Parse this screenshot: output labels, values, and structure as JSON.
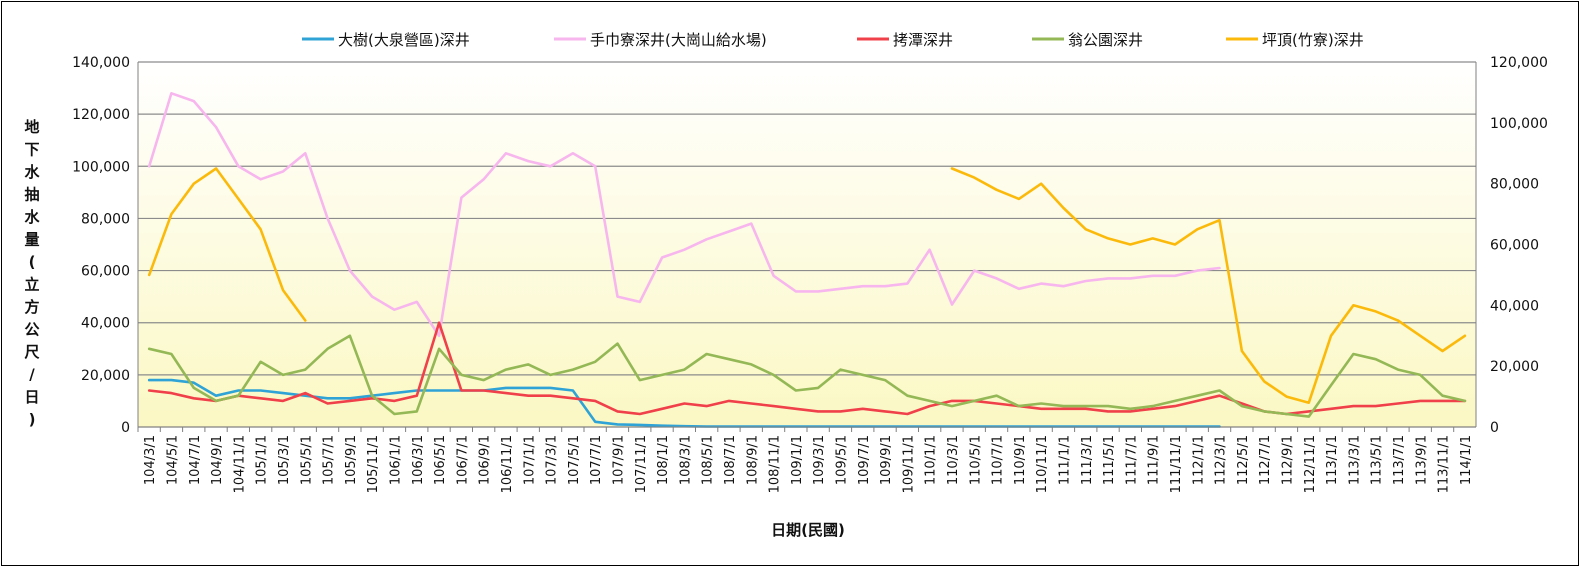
{
  "chart_data": {
    "type": "line",
    "title": "",
    "xlabel": "日期(民國)",
    "ylabel": "地下水抽水量(立方公尺/日)",
    "y_left": {
      "min": 0,
      "max": 140000,
      "step": 20000,
      "ticks": [
        "0",
        "20,000",
        "40,000",
        "60,000",
        "80,000",
        "100,000",
        "120,000",
        "140,000"
      ]
    },
    "y_right": {
      "min": 0,
      "max": 120000,
      "step": 20000,
      "ticks": [
        "0",
        "20,000",
        "40,000",
        "60,000",
        "80,000",
        "100,000",
        "120,000"
      ]
    },
    "x_ticks": [
      "104/3/1",
      "104/5/1",
      "104/7/1",
      "104/9/1",
      "104/11/1",
      "105/1/1",
      "105/3/1",
      "105/5/1",
      "105/7/1",
      "105/9/1",
      "105/11/1",
      "106/1/1",
      "106/3/1",
      "106/5/1",
      "106/7/1",
      "106/9/1",
      "106/11/1",
      "107/1/1",
      "107/3/1",
      "107/5/1",
      "107/7/1",
      "107/9/1",
      "107/11/1",
      "108/1/1",
      "108/3/1",
      "108/5/1",
      "108/7/1",
      "108/9/1",
      "108/11/1",
      "109/1/1",
      "109/3/1",
      "109/5/1",
      "109/7/1",
      "109/9/1",
      "109/11/1",
      "110/1/1",
      "110/3/1",
      "110/5/1",
      "110/7/1",
      "110/9/1",
      "110/11/1",
      "111/1/1",
      "111/3/1",
      "111/5/1",
      "111/7/1",
      "111/9/1",
      "111/11/1",
      "112/1/1",
      "112/3/1",
      "112/5/1",
      "112/7/1",
      "112/9/1",
      "112/11/1",
      "113/1/1",
      "113/3/1",
      "113/5/1",
      "113/7/1",
      "113/9/1",
      "113/11/1",
      "114/1/1"
    ],
    "grid": true,
    "legend_position": "top",
    "background": "gradient-light-yellow",
    "series": [
      {
        "name": "大樹(大泉營區)深井",
        "color": "#2fa3d6",
        "axis": "left",
        "values": [
          18000,
          18000,
          17000,
          12000,
          14000,
          14000,
          13000,
          12000,
          11000,
          11000,
          12000,
          13000,
          14000,
          14000,
          14000,
          14000,
          15000,
          15000,
          15000,
          14000,
          2000,
          1000,
          800,
          500,
          300,
          200,
          200,
          200,
          200,
          200,
          200,
          200,
          200,
          200,
          200,
          200,
          200,
          200,
          200,
          200,
          200,
          200,
          200,
          200,
          200,
          200,
          200,
          200,
          200,
          null,
          null,
          null,
          null,
          null,
          null,
          null,
          null,
          null,
          null,
          null
        ]
      },
      {
        "name": "手巾寮深井(大崗山給水場)",
        "color": "#f7b6ee",
        "axis": "left",
        "values": [
          100000,
          128000,
          125000,
          115000,
          100000,
          95000,
          98000,
          105000,
          80000,
          60000,
          50000,
          45000,
          48000,
          35000,
          88000,
          95000,
          105000,
          102000,
          100000,
          105000,
          100000,
          50000,
          48000,
          65000,
          68000,
          72000,
          75000,
          78000,
          58000,
          52000,
          52000,
          53000,
          54000,
          54000,
          55000,
          68000,
          47000,
          60000,
          57000,
          53000,
          55000,
          54000,
          56000,
          57000,
          57000,
          58000,
          58000,
          60000,
          61000,
          null,
          null,
          null,
          null,
          null,
          null,
          null,
          null,
          null,
          null,
          null
        ]
      },
      {
        "name": "拷潭深井",
        "color": "#f0404a",
        "axis": "left",
        "values": [
          14000,
          13000,
          11000,
          10000,
          12000,
          11000,
          10000,
          13000,
          9000,
          10000,
          11000,
          10000,
          12000,
          40000,
          14000,
          14000,
          13000,
          12000,
          12000,
          11000,
          10000,
          6000,
          5000,
          7000,
          9000,
          8000,
          10000,
          9000,
          8000,
          7000,
          6000,
          6000,
          7000,
          6000,
          5000,
          8000,
          10000,
          10000,
          9000,
          8000,
          7000,
          7000,
          7000,
          6000,
          6000,
          7000,
          8000,
          10000,
          12000,
          9000,
          6000,
          5000,
          6000,
          7000,
          8000,
          8000,
          9000,
          10000,
          10000,
          10000
        ]
      },
      {
        "name": "翁公園深井",
        "color": "#94b855",
        "axis": "left",
        "values": [
          30000,
          28000,
          15000,
          10000,
          12000,
          25000,
          20000,
          22000,
          30000,
          35000,
          12000,
          5000,
          6000,
          30000,
          20000,
          18000,
          22000,
          24000,
          20000,
          22000,
          25000,
          32000,
          18000,
          20000,
          22000,
          28000,
          26000,
          24000,
          20000,
          14000,
          15000,
          22000,
          20000,
          18000,
          12000,
          10000,
          8000,
          10000,
          12000,
          8000,
          9000,
          8000,
          8000,
          8000,
          7000,
          8000,
          10000,
          12000,
          14000,
          8000,
          6000,
          5000,
          4000,
          16000,
          28000,
          26000,
          22000,
          20000,
          12000,
          10000
        ]
      },
      {
        "name": "坪頂(竹寮)深井",
        "color": "#fbba0b",
        "axis": "right",
        "values": [
          50000,
          70000,
          80000,
          85000,
          75000,
          65000,
          45000,
          35000,
          null,
          null,
          null,
          null,
          null,
          null,
          null,
          null,
          null,
          null,
          null,
          null,
          null,
          null,
          null,
          null,
          null,
          null,
          null,
          null,
          null,
          null,
          null,
          null,
          null,
          null,
          null,
          null,
          85000,
          82000,
          78000,
          75000,
          80000,
          72000,
          65000,
          62000,
          60000,
          62000,
          60000,
          65000,
          68000,
          25000,
          15000,
          10000,
          8000,
          30000,
          40000,
          38000,
          35000,
          30000,
          25000,
          30000
        ]
      }
    ]
  }
}
